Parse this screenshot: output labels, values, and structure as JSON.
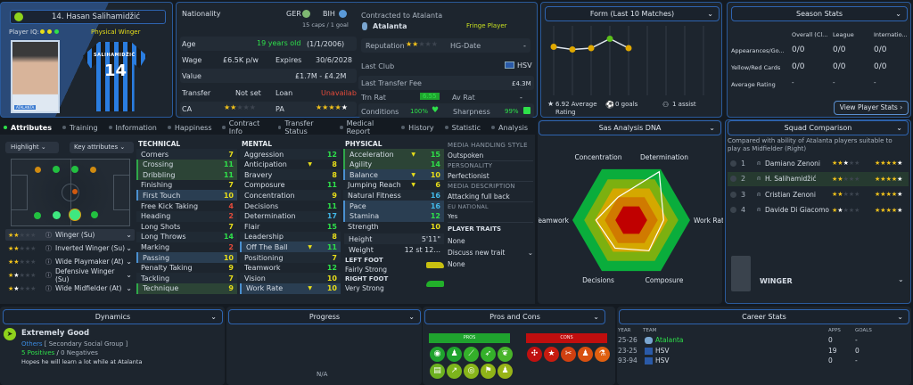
{
  "player": {
    "name": "14. Hasan Salihamidžić",
    "iq_label": "Player IQ:",
    "role": "Physical Winger",
    "shirt_name": "SALIHAMIDŽIĆ",
    "shirt_number": "14",
    "photo_badge": "ATALANTA"
  },
  "info": {
    "nationality_label": "Nationality",
    "nat1": "GER",
    "nat2": "BIH",
    "caps": "15 caps / 1 goal",
    "age_label": "Age",
    "age": "19 years old",
    "dob": "(1/1/2006)",
    "wage_label": "Wage",
    "wage": "£6.5K p/w",
    "expires_label": "Expires",
    "expires": "30/6/2028",
    "value_label": "Value",
    "value": "£1.7M - £4.2M",
    "transfer_label": "Transfer",
    "transfer": "Not set",
    "loan_label": "Loan",
    "loan": "Unavailable",
    "ca_label": "CA",
    "ca_stars": 2,
    "pa_label": "PA",
    "pa_stars": 4.5
  },
  "contract": {
    "title": "Contracted to Atalanta",
    "club": "Atalanta",
    "status": "Fringe Player",
    "reputation_label": "Reputation",
    "reputation_stars": 2,
    "hg_label": "HG-Date",
    "hg": "-",
    "last_club_label": "Last Club",
    "last_club": "HSV",
    "fee_label": "Last Transfer Fee",
    "fee": "£4.3M",
    "trn_label": "Trn Rat",
    "trn": "6.55",
    "av_label": "Av Rat",
    "av": "-",
    "conditions_label": "Conditions",
    "conditions": "100%",
    "sharpness_label": "Sharpness",
    "sharpness": "99%"
  },
  "form": {
    "title": "Form (Last 10 Matches)",
    "ratings": [
      6.8,
      6.7,
      6.75,
      7.1,
      6.75
    ],
    "avg": "6.92 Average Rating",
    "goals": "0 goals",
    "assists": "1 assist"
  },
  "season": {
    "title": "Season Stats",
    "cols": [
      "Overall (Cl...",
      "League",
      "Internatio..."
    ],
    "rows": [
      {
        "label": "Appearances/Go...",
        "vals": [
          "0/0",
          "0/0",
          "0/0"
        ]
      },
      {
        "label": "Yellow/Red Cards",
        "vals": [
          "0/0",
          "0/0",
          "0/0"
        ]
      },
      {
        "label": "Average Rating",
        "vals": [
          "-",
          "-",
          "-"
        ]
      }
    ],
    "button": "View Player Stats"
  },
  "tabs": [
    "Attributes",
    "Training",
    "Information",
    "Happiness",
    "Contract Info",
    "Transfer Status",
    "Medical Report",
    "History",
    "Statistic",
    "Analysis"
  ],
  "controls": {
    "highlight": "Highlight",
    "key": "Key attributes"
  },
  "roles": [
    {
      "stars": 2,
      "name": "Winger (Su)"
    },
    {
      "stars": 2,
      "name": "Inverted Winger (Su)"
    },
    {
      "stars": 2,
      "name": "Wide Playmaker (At)"
    },
    {
      "stars": 1.5,
      "name": "Defensive Winger (Su)"
    },
    {
      "stars": 1.5,
      "name": "Wide Midfielder (At)"
    }
  ],
  "technical": {
    "title": "TECHNICAL",
    "items": [
      [
        "Corners",
        7,
        ""
      ],
      [
        "Crossing",
        11,
        "g"
      ],
      [
        "Dribbling",
        11,
        "g"
      ],
      [
        "Finishing",
        7,
        ""
      ],
      [
        "First Touch",
        10,
        "b"
      ],
      [
        "Free Kick Taking",
        4,
        ""
      ],
      [
        "Heading",
        2,
        ""
      ],
      [
        "Long Shots",
        7,
        ""
      ],
      [
        "Long Throws",
        14,
        ""
      ],
      [
        "Marking",
        2,
        ""
      ],
      [
        "Passing",
        10,
        "b"
      ],
      [
        "Penalty Taking",
        9,
        ""
      ],
      [
        "Tackling",
        7,
        ""
      ],
      [
        "Technique",
        9,
        "g"
      ]
    ]
  },
  "mental": {
    "title": "MENTAL",
    "items": [
      [
        "Aggression",
        12,
        ""
      ],
      [
        "Anticipation",
        8,
        "",
        "a"
      ],
      [
        "Bravery",
        8,
        ""
      ],
      [
        "Composure",
        11,
        ""
      ],
      [
        "Concentration",
        9,
        ""
      ],
      [
        "Decisions",
        11,
        ""
      ],
      [
        "Determination",
        17,
        ""
      ],
      [
        "Flair",
        15,
        ""
      ],
      [
        "Leadership",
        8,
        ""
      ],
      [
        "Off The Ball",
        11,
        "b",
        "a"
      ],
      [
        "Positioning",
        7,
        ""
      ],
      [
        "Teamwork",
        12,
        ""
      ],
      [
        "Vision",
        10,
        ""
      ],
      [
        "Work Rate",
        10,
        "b",
        "a"
      ]
    ]
  },
  "physical": {
    "title": "PHYSICAL",
    "items": [
      [
        "Acceleration",
        15,
        "g",
        "a"
      ],
      [
        "Agility",
        14,
        "g"
      ],
      [
        "Balance",
        10,
        "b",
        "a"
      ],
      [
        "Jumping Reach",
        6,
        "",
        "a"
      ],
      [
        "Natural Fitness",
        16,
        ""
      ],
      [
        "Pace",
        16,
        "b"
      ],
      [
        "Stamina",
        12,
        "b"
      ],
      [
        "Strength",
        10,
        ""
      ]
    ],
    "height_label": "Height",
    "height": "5'11\"",
    "weight_label": "Weight",
    "weight": "12 st 12...",
    "left_foot_label": "LEFT FOOT",
    "left_foot": "Fairly Strong",
    "right_foot_label": "RIGHT FOOT",
    "right_foot": "Very Strong"
  },
  "media": {
    "style_label": "MEDIA HANDLING STYLE",
    "style": "Outspoken",
    "personality_label": "PERSONALITY",
    "personality": "Perfectionist",
    "desc_label": "MEDIA DESCRIPTION",
    "desc": "Attacking full back",
    "eu_label": "EU NATIONAL",
    "eu": "Yes",
    "traits_label": "PLAYER TRAITS",
    "traits": "None",
    "discuss": "Discuss new trait",
    "discuss_value": "None"
  },
  "dna": {
    "title": "Sas Analysis DNA",
    "axes": [
      "Determination",
      "Work Rate",
      "Composure",
      "Decisions",
      "Teamwork",
      "Concentration"
    ],
    "values": [
      0.95,
      0.55,
      0.6,
      0.55,
      0.6,
      0.45
    ]
  },
  "squad": {
    "title": "Squad Comparison",
    "desc": "Compared with ability of Atalanta players suitable to play as Midfielder (Right)",
    "players": [
      {
        "rank": "1",
        "name": "Damiano Zenoni",
        "ca": 2.5,
        "pa": 4.5
      },
      {
        "rank": "2",
        "name": "H. Salihamidžić",
        "ca": 2,
        "pa": 4.5
      },
      {
        "rank": "3",
        "name": "Cristian Zenoni",
        "ca": 2,
        "pa": 4.5
      },
      {
        "rank": "4",
        "name": "Davide Di Giacomo",
        "ca": 1.5,
        "pa": 4.5
      }
    ],
    "position": "WINGER"
  },
  "dynamics": {
    "title": "Dynamics",
    "status": "Extremely Good",
    "group": "Others",
    "group_type": "[ Secondary Social Group ]",
    "positives": "5 Positives",
    "negatives": "0 Negatives",
    "note": "Hopes he will learn a lot while at Atalanta"
  },
  "progress": {
    "title": "Progress",
    "value": "N/A"
  },
  "proscons": {
    "title": "Pros and Cons",
    "pros": "PROS",
    "cons": "CONS"
  },
  "career": {
    "title": "Career Stats",
    "cols": [
      "YEAR",
      "TEAM",
      "APPS",
      "GOALS"
    ],
    "rows": [
      [
        "25-26",
        "Atalanta",
        "0",
        "-"
      ],
      [
        "23-25",
        "HSV",
        "19",
        "0"
      ],
      [
        "93-94",
        "HSV",
        "0",
        "-"
      ]
    ]
  },
  "colors": {
    "accent": "#2a5a9a",
    "green": "#2ee04a",
    "yellow": "#e8de1a",
    "red": "#e34a3a",
    "blue": "#42b8e8"
  }
}
